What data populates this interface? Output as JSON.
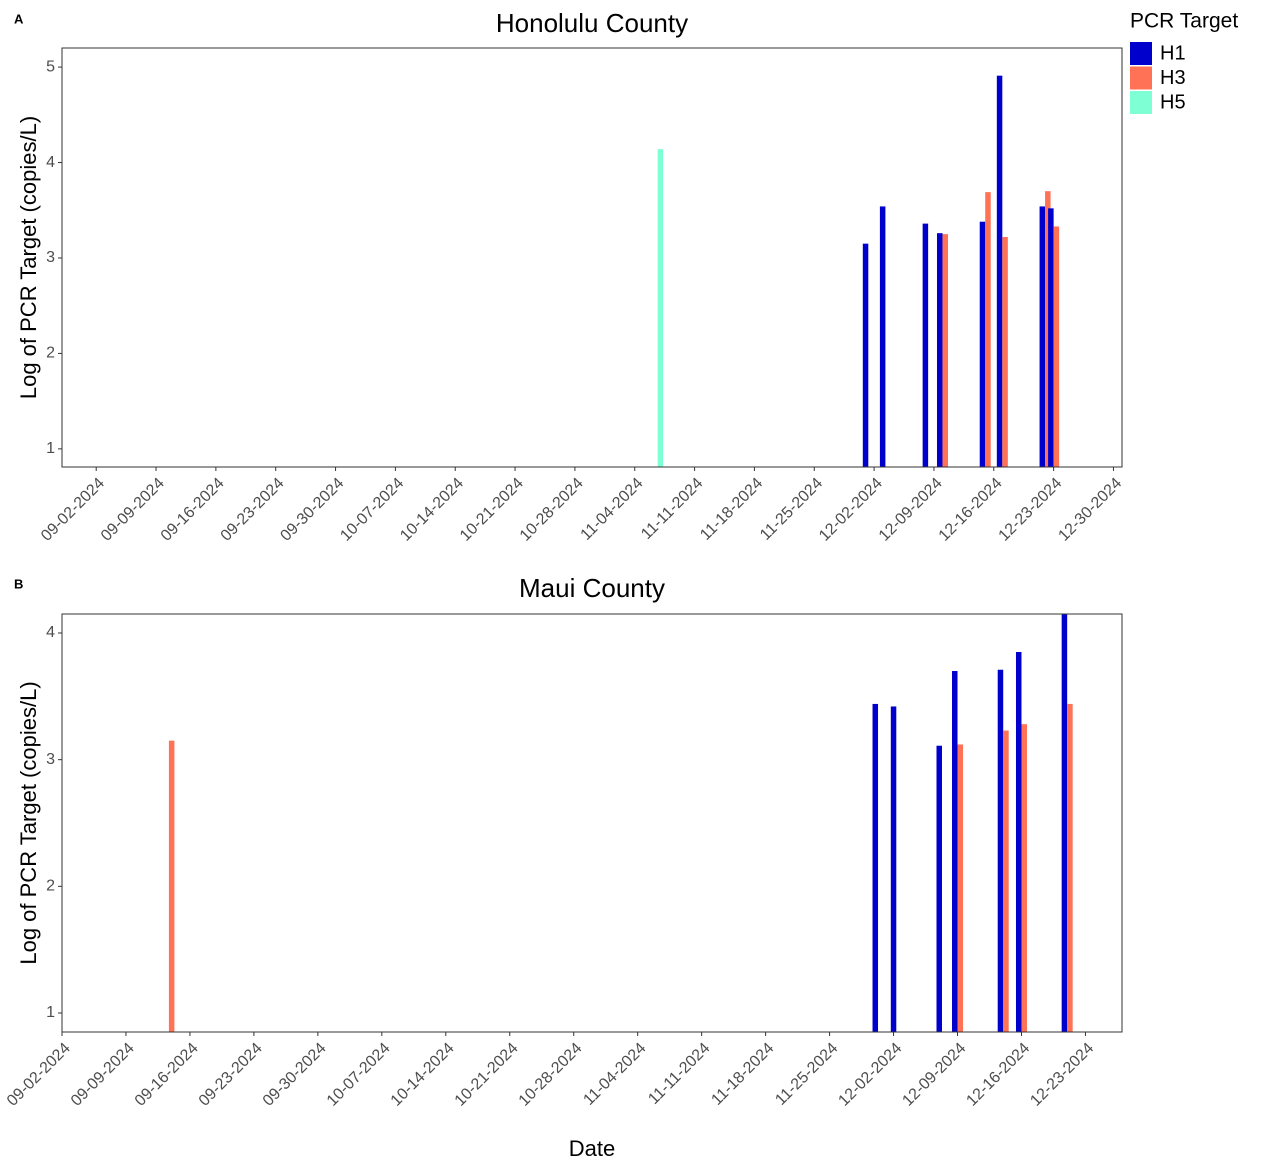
{
  "chart_data": [
    {
      "type": "bar",
      "panel_label": "A",
      "title": "Honolulu County",
      "ylabel": "Log of PCR Target (copies/L)",
      "legend_title": "PCR Target",
      "legend": "right",
      "x": [
        "11-07-2024",
        "12-01-2024",
        "12-03-2024",
        "12-08-2024",
        "12-10-2024",
        "12-15-2024",
        "12-17-2024",
        "12-22-2024",
        "12-23-2024"
      ],
      "series": [
        {
          "name": "H1",
          "color": "#0000cd",
          "values": [
            null,
            3.15,
            3.54,
            3.36,
            3.26,
            3.38,
            4.91,
            3.54,
            3.52
          ]
        },
        {
          "name": "H3",
          "color": "#ff7256",
          "values": [
            null,
            null,
            null,
            null,
            3.25,
            3.69,
            3.22,
            3.7,
            3.33
          ]
        },
        {
          "name": "H5",
          "color": "#7fffd4",
          "values": [
            4.14,
            null,
            null,
            null,
            null,
            null,
            null,
            null,
            null
          ]
        }
      ],
      "xlim": [
        "08-29-2024",
        "12-31-2024"
      ],
      "xticks": [
        "09-02-2024",
        "09-09-2024",
        "09-16-2024",
        "09-23-2024",
        "09-30-2024",
        "10-07-2024",
        "10-14-2024",
        "10-21-2024",
        "10-28-2024",
        "11-04-2024",
        "11-11-2024",
        "11-18-2024",
        "11-25-2024",
        "12-02-2024",
        "12-09-2024",
        "12-16-2024",
        "12-23-2024",
        "12-30-2024"
      ],
      "ylim": [
        0.81,
        5.2
      ],
      "yticks": [
        1,
        2,
        3,
        4,
        5
      ],
      "grid": false
    },
    {
      "type": "bar",
      "panel_label": "B",
      "title": "Maui County",
      "ylabel": "Log of PCR Target (copies/L)",
      "xlabel": "Date",
      "x": [
        "09-14-2024",
        "11-30-2024",
        "12-02-2024",
        "12-07-2024",
        "12-09-2024",
        "12-14-2024",
        "12-16-2024",
        "12-21-2024"
      ],
      "series": [
        {
          "name": "H1",
          "color": "#0000cd",
          "values": [
            null,
            3.44,
            3.42,
            3.11,
            3.7,
            3.71,
            3.85,
            4.15
          ]
        },
        {
          "name": "H3",
          "color": "#ff7256",
          "values": [
            3.15,
            null,
            null,
            null,
            3.12,
            3.23,
            3.28,
            3.44
          ]
        }
      ],
      "xlim": [
        "09-02-2024",
        "12-27-2024"
      ],
      "xticks": [
        "09-02-2024",
        "09-09-2024",
        "09-16-2024",
        "09-23-2024",
        "09-30-2024",
        "10-07-2024",
        "10-14-2024",
        "10-21-2024",
        "10-28-2024",
        "11-04-2024",
        "11-11-2024",
        "11-18-2024",
        "11-25-2024",
        "12-02-2024",
        "12-09-2024",
        "12-16-2024",
        "12-23-2024"
      ],
      "ylim": [
        0.85,
        4.15
      ],
      "yticks": [
        1,
        2,
        3,
        4
      ],
      "grid": false
    }
  ]
}
